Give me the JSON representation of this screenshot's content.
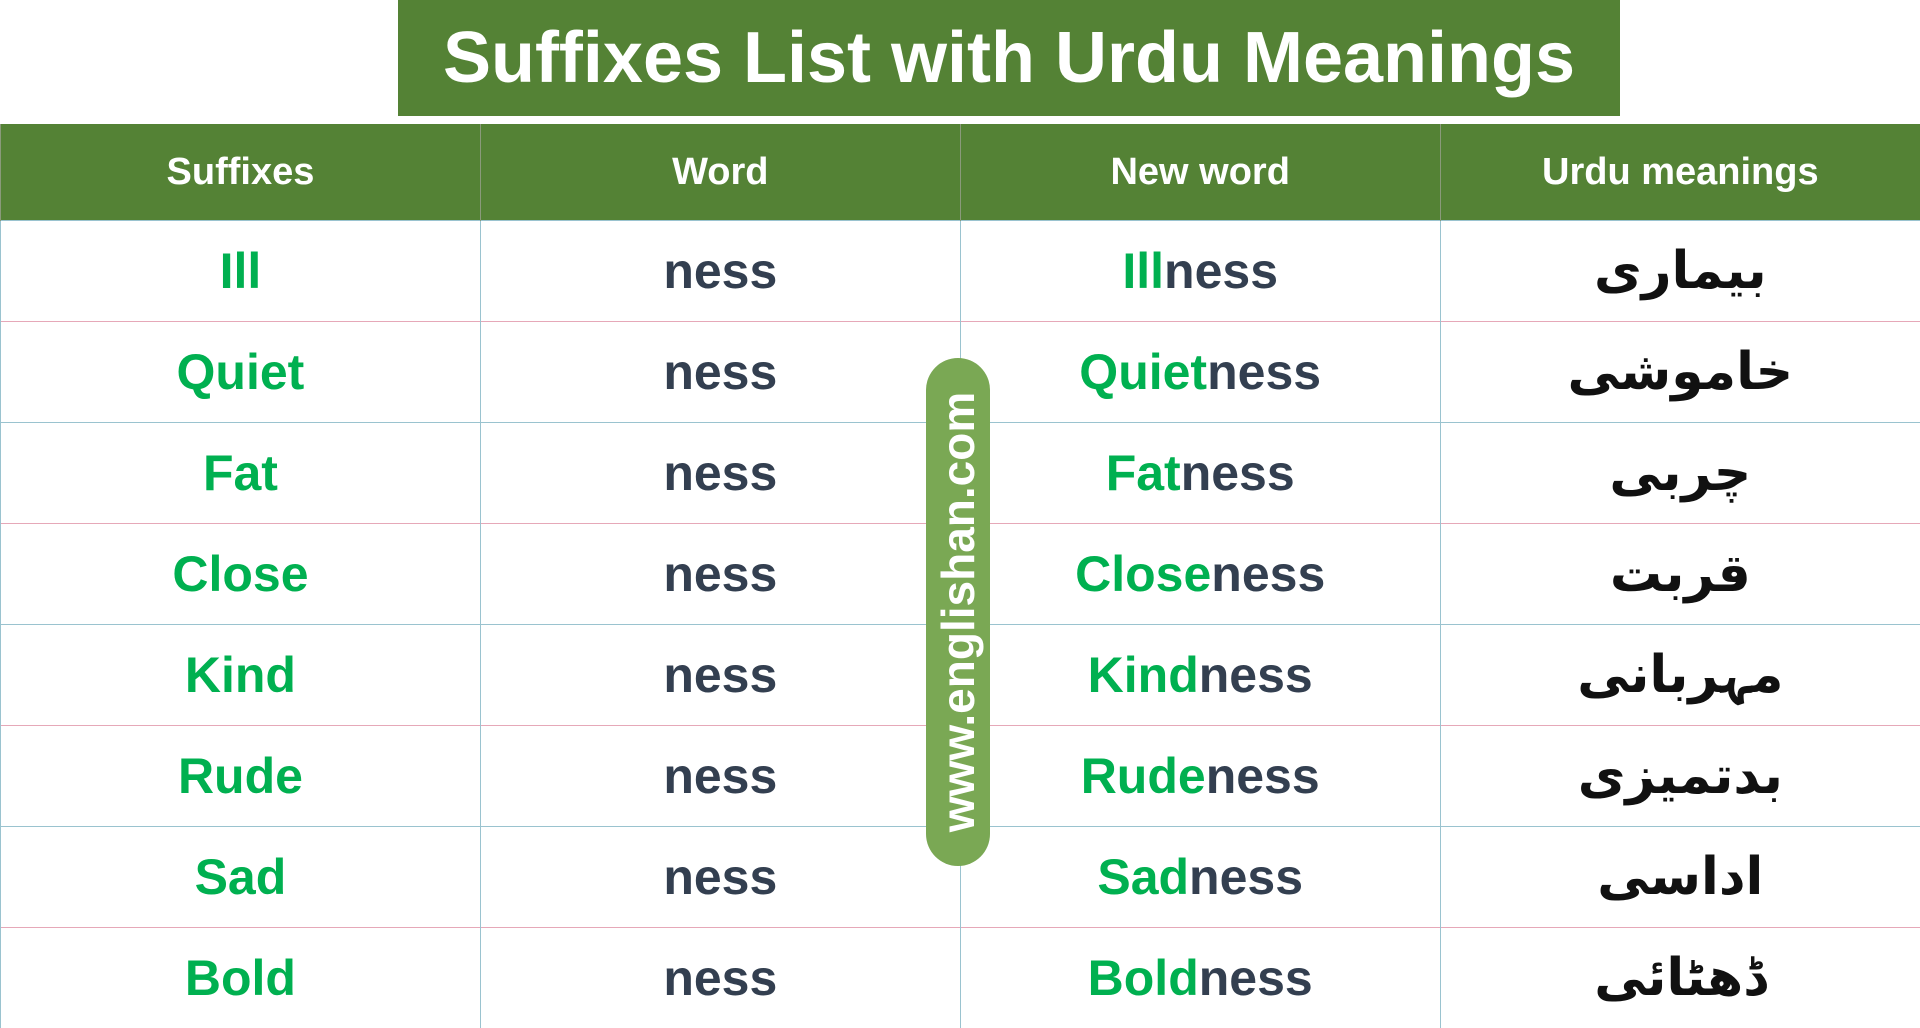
{
  "title": "Suffixes List with Urdu Meanings",
  "headers": [
    "Suffixes",
    "Word",
    "New word",
    "Urdu meanings"
  ],
  "rows": [
    {
      "suffix": "Ill",
      "word": "ness",
      "new_base": "Ill",
      "new_suffix": "ness",
      "urdu": "بیماری"
    },
    {
      "suffix": "Quiet",
      "word": "ness",
      "new_base": "Quiet",
      "new_suffix": "ness",
      "urdu": "خاموشی"
    },
    {
      "suffix": "Fat",
      "word": "ness",
      "new_base": "Fat",
      "new_suffix": "ness",
      "urdu": "چربی"
    },
    {
      "suffix": "Close",
      "word": "ness",
      "new_base": "Close",
      "new_suffix": "ness",
      "urdu": "قربت"
    },
    {
      "suffix": "Kind",
      "word": "ness",
      "new_base": "Kind",
      "new_suffix": "ness",
      "urdu": "مہربانی"
    },
    {
      "suffix": "Rude",
      "word": "ness",
      "new_base": "Rude",
      "new_suffix": "ness",
      "urdu": "بدتمیزی"
    },
    {
      "suffix": "Sad",
      "word": "ness",
      "new_base": "Sad",
      "new_suffix": "ness",
      "urdu": "اداسی"
    },
    {
      "suffix": "Bold",
      "word": "ness",
      "new_base": "Bold",
      "new_suffix": "ness",
      "urdu": "ڈھٹائی"
    }
  ],
  "watermark": "www.englishan.com",
  "colors": {
    "header_bg": "#548235",
    "base_text": "#00b050",
    "suffix_text": "#333f50"
  }
}
